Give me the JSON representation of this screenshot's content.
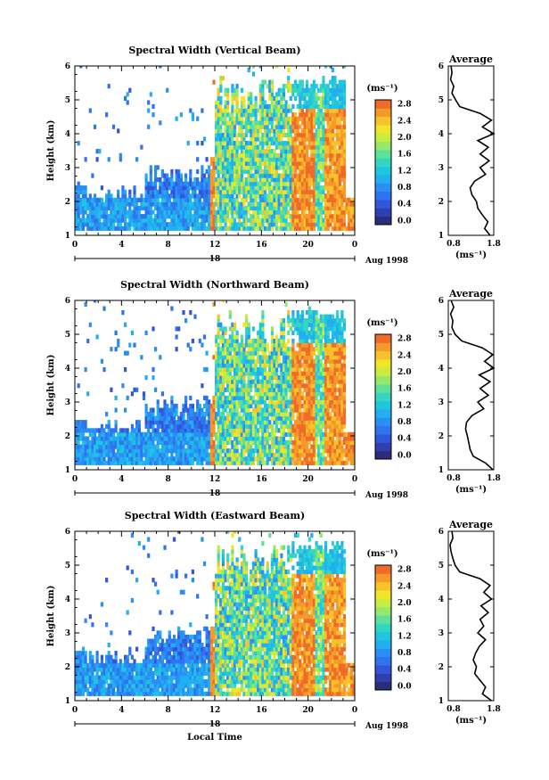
{
  "chart_data": [
    {
      "type": "heatmap",
      "title": "Spectral Width (Vertical Beam)",
      "xlabel": "",
      "ylabel": "Height (km)",
      "xlim": [
        0,
        24
      ],
      "ylim": [
        1,
        6
      ],
      "x_ticks": [
        "0",
        "4",
        "8",
        "12",
        "16",
        "20",
        "0"
      ],
      "y_ticks": [
        "1",
        "2",
        "3",
        "4",
        "5",
        "6"
      ],
      "date_label": "18",
      "date_suffix": "Aug 1998",
      "colorbar": {
        "unit_label": "(ms⁻¹)",
        "ticks": [
          "0.0",
          "0.4",
          "0.8",
          "1.2",
          "1.6",
          "2.0",
          "2.4",
          "2.8"
        ],
        "range": [
          0,
          3.0
        ]
      },
      "average_profile": {
        "title": "Average",
        "xlabel": "(ms⁻¹)",
        "x_ticks": [
          "0.8",
          "1.8"
        ],
        "y_ticks": [
          "1",
          "2",
          "3",
          "4",
          "5",
          "6"
        ],
        "xlim": [
          0.8,
          1.8
        ],
        "ylim": [
          1,
          6
        ],
        "heights": [
          1.0,
          1.2,
          1.4,
          1.6,
          1.8,
          2.0,
          2.2,
          2.4,
          2.6,
          2.8,
          3.0,
          3.2,
          3.4,
          3.6,
          3.8,
          4.0,
          4.2,
          4.4,
          4.6,
          4.8,
          5.0,
          5.2,
          5.4,
          5.6,
          5.8,
          6.0
        ],
        "values": [
          1.72,
          1.6,
          1.67,
          1.55,
          1.45,
          1.42,
          1.32,
          1.28,
          1.38,
          1.62,
          1.5,
          1.7,
          1.5,
          1.68,
          1.45,
          1.8,
          1.55,
          1.75,
          1.5,
          1.05,
          0.96,
          0.88,
          0.92,
          0.85,
          0.88,
          0.86
        ]
      }
    },
    {
      "type": "heatmap",
      "title": "Spectral Width (Northward Beam)",
      "xlabel": "",
      "ylabel": "Height (km)",
      "xlim": [
        0,
        24
      ],
      "ylim": [
        1,
        6
      ],
      "x_ticks": [
        "0",
        "4",
        "8",
        "12",
        "16",
        "20",
        "0"
      ],
      "y_ticks": [
        "1",
        "2",
        "3",
        "4",
        "5",
        "6"
      ],
      "date_label": "18",
      "date_suffix": "Aug 1998",
      "colorbar": {
        "unit_label": "(ms⁻¹)",
        "ticks": [
          "0.0",
          "0.4",
          "0.8",
          "1.2",
          "1.6",
          "2.0",
          "2.4",
          "2.8"
        ],
        "range": [
          0,
          3.0
        ]
      },
      "average_profile": {
        "title": "Average",
        "xlabel": "(ms⁻¹)",
        "x_ticks": [
          "0.8",
          "1.8"
        ],
        "y_ticks": [
          "1",
          "2",
          "3",
          "4",
          "5",
          "6"
        ],
        "xlim": [
          0.8,
          1.8
        ],
        "ylim": [
          1,
          6
        ],
        "heights": [
          1.0,
          1.2,
          1.4,
          1.6,
          1.8,
          2.0,
          2.2,
          2.4,
          2.6,
          2.8,
          3.0,
          3.2,
          3.4,
          3.6,
          3.8,
          4.0,
          4.2,
          4.4,
          4.6,
          4.8,
          5.0,
          5.2,
          5.4,
          5.6,
          5.8,
          6.0
        ],
        "values": [
          1.78,
          1.62,
          1.35,
          1.28,
          1.25,
          1.22,
          1.18,
          1.2,
          1.32,
          1.58,
          1.45,
          1.68,
          1.5,
          1.72,
          1.48,
          1.8,
          1.6,
          1.78,
          1.55,
          1.1,
          0.95,
          0.88,
          0.9,
          0.85,
          0.92,
          0.86
        ]
      }
    },
    {
      "type": "heatmap",
      "title": "Spectral Width (Eastward Beam)",
      "xlabel": "Local Time",
      "ylabel": "Height (km)",
      "xlim": [
        0,
        24
      ],
      "ylim": [
        1,
        6
      ],
      "x_ticks": [
        "0",
        "4",
        "8",
        "12",
        "16",
        "20",
        "0"
      ],
      "y_ticks": [
        "1",
        "2",
        "3",
        "4",
        "5",
        "6"
      ],
      "date_label": "18",
      "date_suffix": "Aug 1998",
      "colorbar": {
        "unit_label": "(ms⁻¹)",
        "ticks": [
          "0.0",
          "0.4",
          "0.8",
          "1.2",
          "1.6",
          "2.0",
          "2.4",
          "2.8"
        ],
        "range": [
          0,
          3.0
        ]
      },
      "average_profile": {
        "title": "Average",
        "xlabel": "(ms⁻¹)",
        "x_ticks": [
          "0.8",
          "1.8"
        ],
        "y_ticks": [
          "1",
          "2",
          "3",
          "4",
          "5",
          "6"
        ],
        "xlim": [
          0.8,
          1.8
        ],
        "ylim": [
          1,
          6
        ],
        "heights": [
          1.0,
          1.2,
          1.4,
          1.6,
          1.8,
          2.0,
          2.2,
          2.4,
          2.6,
          2.8,
          3.0,
          3.2,
          3.4,
          3.6,
          3.8,
          4.0,
          4.2,
          4.4,
          4.6,
          4.8,
          5.0,
          5.2,
          5.4,
          5.6,
          5.8,
          6.0
        ],
        "values": [
          1.75,
          1.55,
          1.62,
          1.5,
          1.38,
          1.42,
          1.35,
          1.4,
          1.48,
          1.62,
          1.45,
          1.58,
          1.5,
          1.68,
          1.52,
          1.75,
          1.58,
          1.72,
          1.5,
          1.05,
          0.95,
          0.9,
          0.86,
          0.84,
          0.9,
          0.88
        ]
      }
    }
  ]
}
